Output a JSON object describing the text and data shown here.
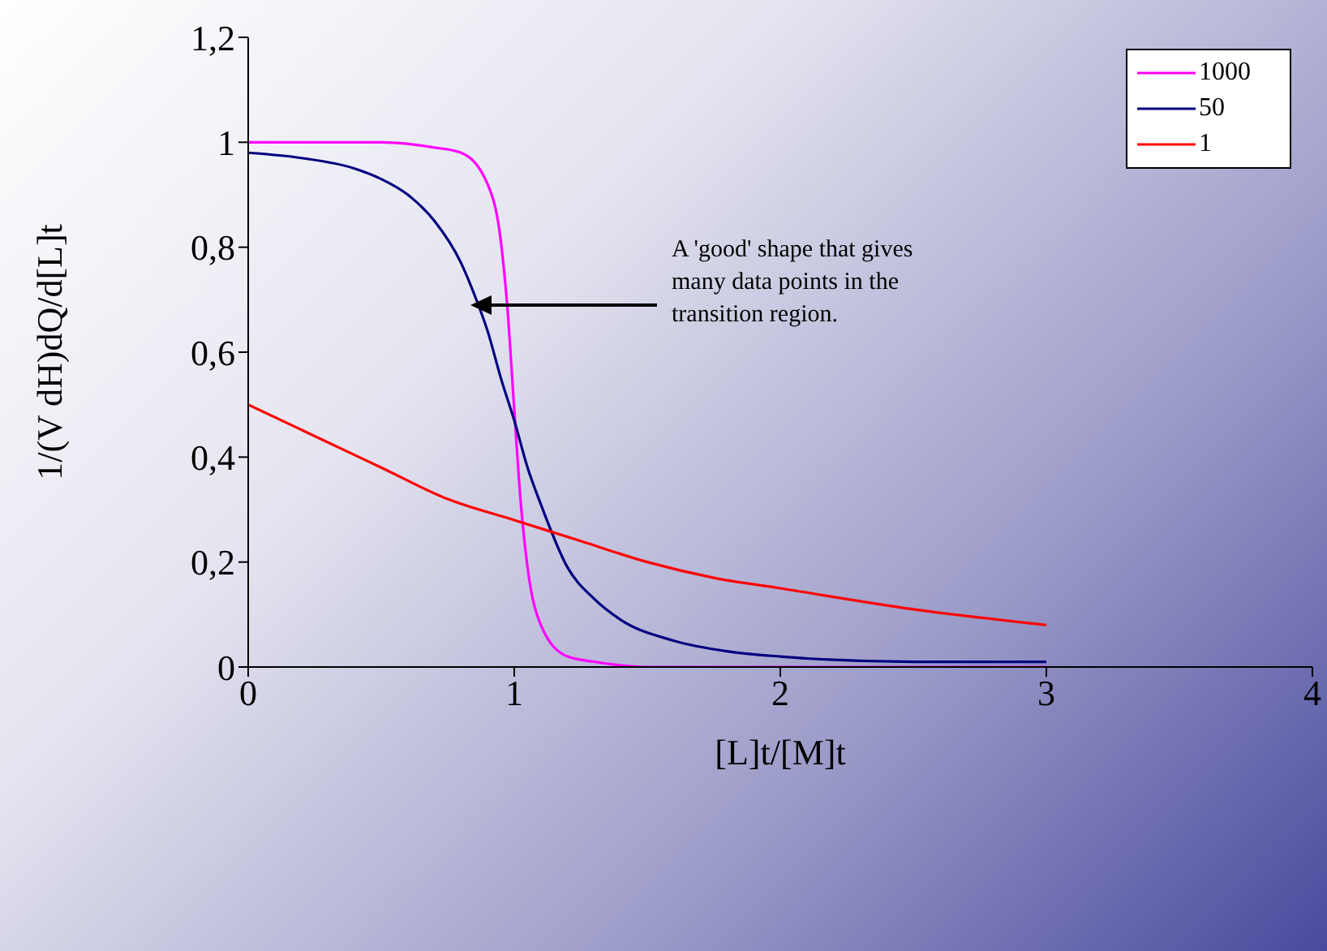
{
  "chart_data": {
    "type": "line",
    "xlabel": "[L]t/[M]t",
    "ylabel": "1/(V dH)dQ/d[L]t",
    "xlim": [
      0,
      4
    ],
    "xticks": [
      0,
      1,
      2,
      3,
      4
    ],
    "ylim": [
      0,
      1.2
    ],
    "yticks": [
      0,
      {
        "value": 0.2,
        "label": "0,2"
      },
      {
        "value": 0.4,
        "label": "0,4"
      },
      {
        "value": 0.6,
        "label": "0,6"
      },
      {
        "value": 0.8,
        "label": "0,8"
      },
      1,
      {
        "value": 1.2,
        "label": "1,2"
      }
    ],
    "grid": false,
    "legend": "top right",
    "marker": "none",
    "line_style": "solid",
    "annotations": [
      "A 'good' shape that gives many data points in the transition region."
    ],
    "series": [
      {
        "name": "1000",
        "color": "#ff00ff",
        "x": [
          0,
          0.5,
          0.7,
          0.8,
          0.9,
          0.95,
          0.975,
          1,
          1.025,
          1.05,
          1.1,
          1.2,
          1.3,
          1.5,
          2,
          3
        ],
        "values": [
          1,
          1,
          0.99,
          0.98,
          0.92,
          0.81,
          0.68,
          0.49,
          0.31,
          0.19,
          0.08,
          0.02,
          0.01,
          0,
          0,
          0
        ]
      },
      {
        "name": "50",
        "color": "#000080",
        "x": [
          0,
          0.2,
          0.4,
          0.5,
          0.6,
          0.7,
          0.8,
          0.85,
          0.9,
          0.95,
          1,
          1.05,
          1.1,
          1.2,
          1.3,
          1.4,
          1.6,
          1.8,
          2,
          2.5,
          3
        ],
        "values": [
          0.98,
          0.97,
          0.95,
          0.93,
          0.9,
          0.85,
          0.77,
          0.71,
          0.64,
          0.55,
          0.47,
          0.38,
          0.31,
          0.19,
          0.13,
          0.09,
          0.05,
          0.03,
          0.02,
          0.01,
          0.01
        ]
      },
      {
        "name": "1",
        "color": "#ff0000",
        "x": [
          0,
          0.25,
          0.5,
          0.75,
          1,
          1.25,
          1.5,
          1.75,
          2,
          2.5,
          3
        ],
        "values": [
          0.5,
          0.44,
          0.38,
          0.32,
          0.28,
          0.24,
          0.2,
          0.17,
          0.15,
          0.11,
          0.08
        ]
      }
    ]
  }
}
